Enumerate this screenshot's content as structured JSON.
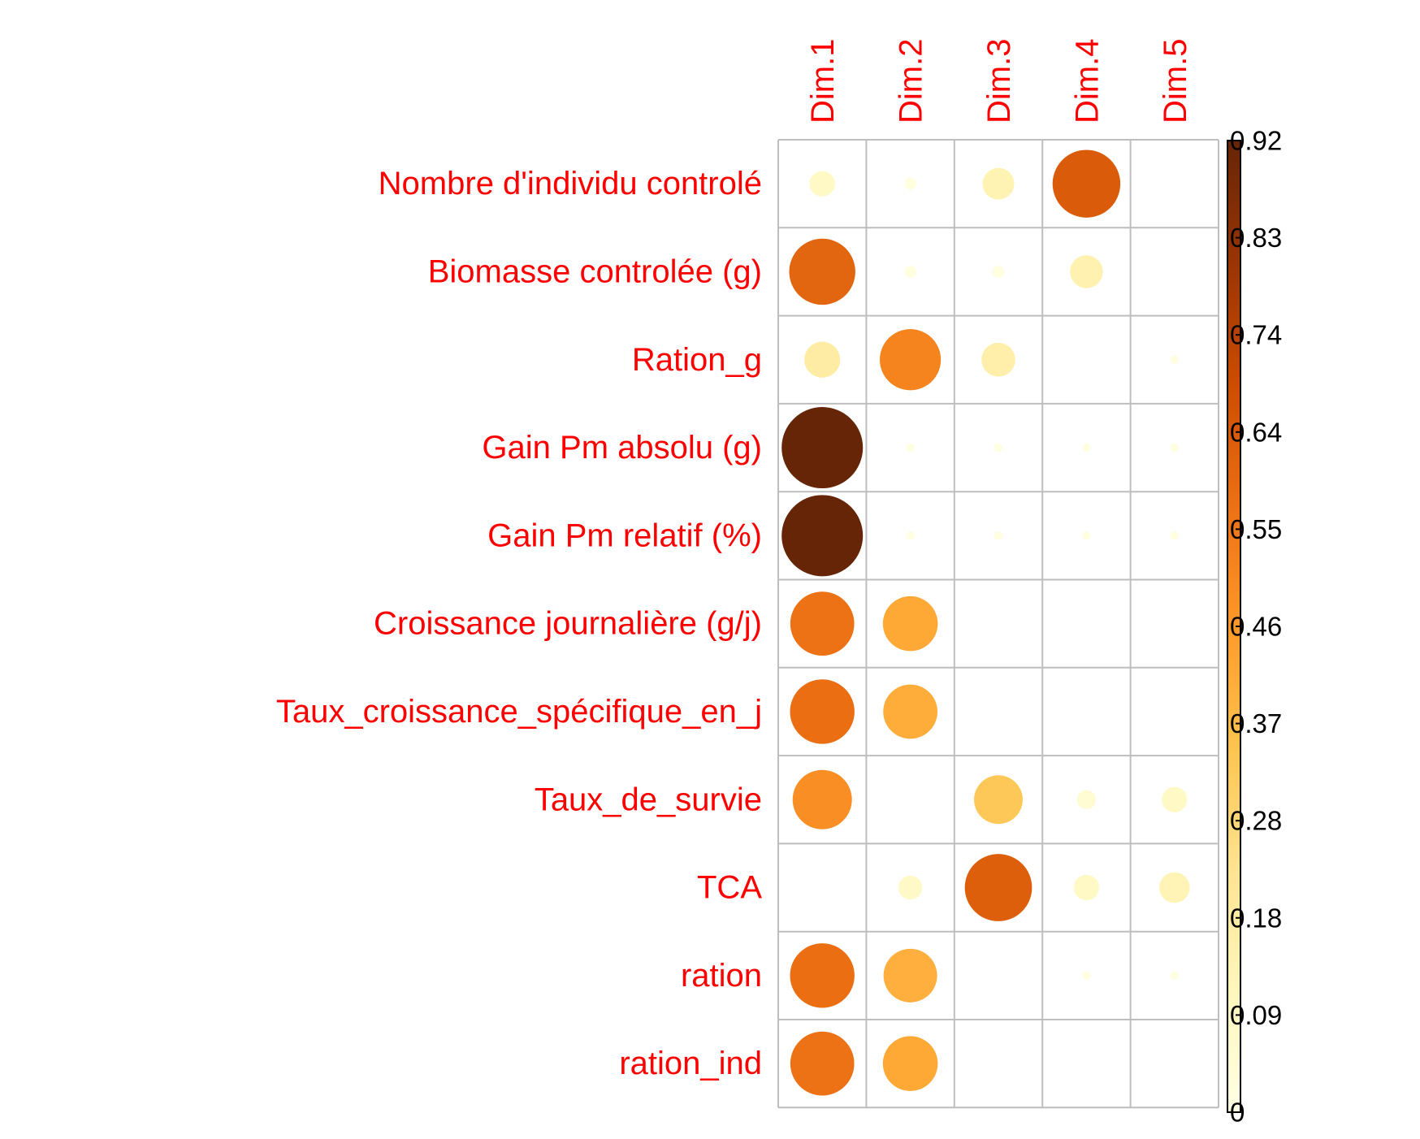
{
  "chart_data": {
    "type": "heatmap",
    "title": "",
    "columns": [
      "Dim.1",
      "Dim.2",
      "Dim.3",
      "Dim.4",
      "Dim.5"
    ],
    "rows": [
      "Nombre d'individu controlé",
      "Biomasse controlée  (g)",
      "Ration_g",
      "Gain Pm absolu (g)",
      "Gain Pm relatif (%)",
      "Croissance journalière (g/j)",
      "Taux_croissance_spécifique_en_j",
      "Taux_de_survie",
      "TCA",
      "ration",
      "ration_ind"
    ],
    "values": [
      [
        0.09,
        0.02,
        0.14,
        0.64,
        0.0
      ],
      [
        0.61,
        0.02,
        0.02,
        0.15,
        0.0
      ],
      [
        0.18,
        0.52,
        0.16,
        0.0,
        0.01
      ],
      [
        0.92,
        0.01,
        0.01,
        0.01,
        0.01
      ],
      [
        0.92,
        0.01,
        0.01,
        0.01,
        0.01
      ],
      [
        0.57,
        0.42,
        0.0,
        0.0,
        0.0
      ],
      [
        0.58,
        0.41,
        0.0,
        0.0,
        0.0
      ],
      [
        0.49,
        0.0,
        0.33,
        0.05,
        0.09
      ],
      [
        0.0,
        0.08,
        0.63,
        0.09,
        0.13
      ],
      [
        0.58,
        0.4,
        0.0,
        0.01,
        0.01
      ],
      [
        0.57,
        0.42,
        0.0,
        0.0,
        0.0
      ]
    ],
    "colorbar": {
      "min": 0,
      "max": 0.92,
      "tick_labels": [
        "0.92",
        "0.83",
        "0.74",
        "0.64",
        "0.55",
        "0.46",
        "0.37",
        "0.28",
        "0.18",
        "0.09",
        "0"
      ],
      "colors": [
        "#ffffe5",
        "#fff7bc",
        "#fee391",
        "#fec44f",
        "#fe9929",
        "#ec7014",
        "#cc4c02",
        "#993404",
        "#662506"
      ]
    },
    "label_color": "#ff0000",
    "grid_color": "#bebebe",
    "legend_placement": "right"
  }
}
